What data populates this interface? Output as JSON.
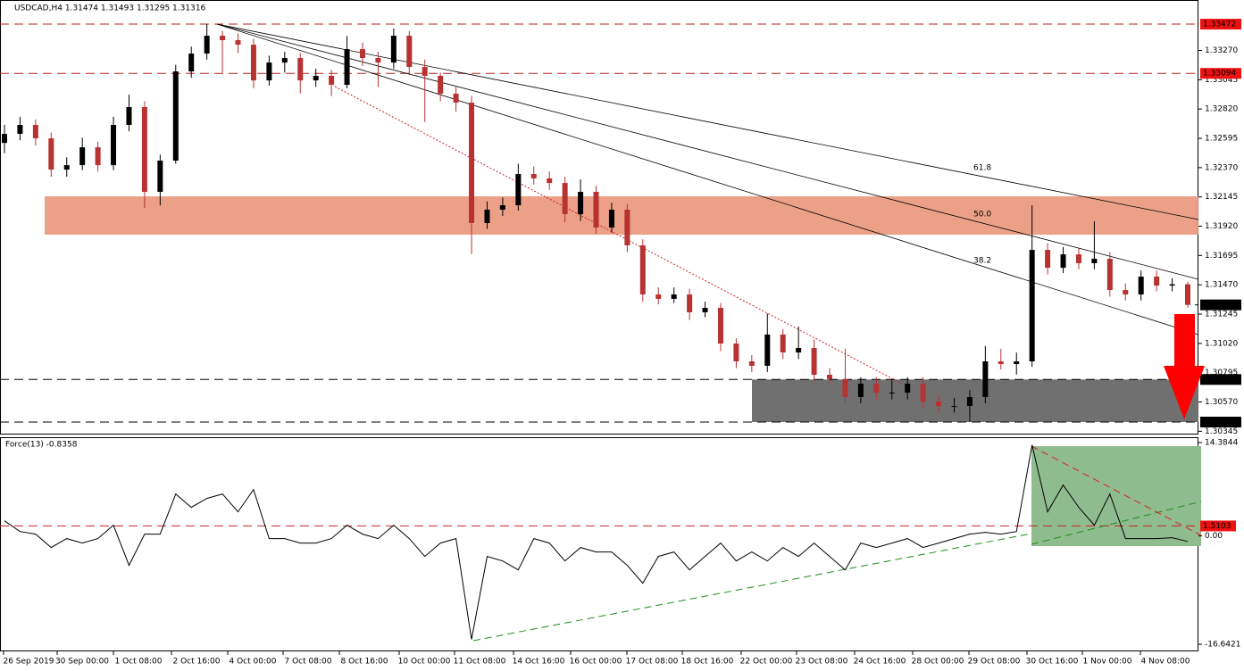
{
  "header": {
    "symbol_info": "USDCAD,H4  1.31474 1.31493 1.31295 1.31316"
  },
  "x_labels": [
    "26 Sep 2019",
    "30 Sep 00:00",
    "1 Oct 08:00",
    "2 Oct 16:00",
    "4 Oct 00:00",
    "7 Oct 08:00",
    "8 Oct 16:00",
    "10 Oct 00:00",
    "11 Oct 08:00",
    "14 Oct 16:00",
    "16 Oct 00:00",
    "17 Oct 08:00",
    "18 Oct 16:00",
    "22 Oct 00:00",
    "23 Oct 08:00",
    "24 Oct 16:00",
    "28 Oct 00:00",
    "29 Oct 08:00",
    "30 Oct 16:00",
    "1 Nov 00:00",
    "4 Nov 08:00"
  ],
  "chart_data": [
    {
      "type": "candlestick",
      "up_color": "#000000",
      "down_color": "#b83232",
      "candles": [
        [
          1.3256,
          1.327,
          1.3248,
          1.32629
        ],
        [
          1.32629,
          1.3276,
          1.3258,
          1.32698
        ],
        [
          1.32698,
          1.3274,
          1.3254,
          1.32595
        ],
        [
          1.32595,
          1.3264,
          1.323,
          1.32355
        ],
        [
          1.32355,
          1.3245,
          1.323,
          1.32389
        ],
        [
          1.32389,
          1.326,
          1.3235,
          1.32526
        ],
        [
          1.32526,
          1.3257,
          1.3234,
          1.32389
        ],
        [
          1.32389,
          1.3276,
          1.3235,
          1.32698
        ],
        [
          1.32698,
          1.3293,
          1.3265,
          1.32835
        ],
        [
          1.32835,
          1.3288,
          1.3206,
          1.32184
        ],
        [
          1.32184,
          1.3247,
          1.3208,
          1.32424
        ],
        [
          1.32424,
          1.3316,
          1.324,
          1.33109
        ],
        [
          1.33109,
          1.333,
          1.3306,
          1.33246
        ],
        [
          1.33246,
          1.33472,
          1.332,
          1.33383
        ],
        [
          1.33383,
          1.3342,
          1.331,
          1.33349
        ],
        [
          1.33349,
          1.334,
          1.3325,
          1.33314
        ],
        [
          1.33314,
          1.3336,
          1.3298,
          1.3304
        ],
        [
          1.3304,
          1.3323,
          1.33,
          1.33177
        ],
        [
          1.33177,
          1.3326,
          1.331,
          1.33212
        ],
        [
          1.33212,
          1.3325,
          1.3294,
          1.3304
        ],
        [
          1.3304,
          1.3313,
          1.3299,
          1.33075
        ],
        [
          1.33075,
          1.3312,
          1.3292,
          1.33006
        ],
        [
          1.33006,
          1.3338,
          1.3298,
          1.3328
        ],
        [
          1.3328,
          1.3333,
          1.3315,
          1.33212
        ],
        [
          1.33212,
          1.3326,
          1.3299,
          1.33177
        ],
        [
          1.33177,
          1.3344,
          1.3313,
          1.33383
        ],
        [
          1.33383,
          1.3342,
          1.3308,
          1.33143
        ],
        [
          1.33143,
          1.332,
          1.3272,
          1.33075
        ],
        [
          1.33075,
          1.331,
          1.3288,
          1.32938
        ],
        [
          1.32938,
          1.3299,
          1.328,
          1.32869
        ],
        [
          1.32869,
          1.3292,
          1.31704,
          1.31944
        ],
        [
          1.31944,
          1.3211,
          1.319,
          1.32047
        ],
        [
          1.32047,
          1.3214,
          1.32,
          1.32081
        ],
        [
          1.32081,
          1.324,
          1.3204,
          1.32321
        ],
        [
          1.32321,
          1.3238,
          1.3224,
          1.32287
        ],
        [
          1.32287,
          1.3234,
          1.322,
          1.32252
        ],
        [
          1.32252,
          1.323,
          1.3195,
          1.32013
        ],
        [
          1.32013,
          1.3228,
          1.3196,
          1.32184
        ],
        [
          1.32184,
          1.3223,
          1.3186,
          1.3191
        ],
        [
          1.3191,
          1.321,
          1.3187,
          1.32047
        ],
        [
          1.32047,
          1.3209,
          1.3172,
          1.31773
        ],
        [
          1.31773,
          1.3182,
          1.3134,
          1.31396
        ],
        [
          1.31396,
          1.3145,
          1.3132,
          1.31362
        ],
        [
          1.31362,
          1.3145,
          1.3133,
          1.31396
        ],
        [
          1.31396,
          1.3144,
          1.312,
          1.31259
        ],
        [
          1.31259,
          1.3134,
          1.3122,
          1.31293
        ],
        [
          1.31293,
          1.3133,
          1.3096,
          1.31019
        ],
        [
          1.31019,
          1.3106,
          1.3083,
          1.30882
        ],
        [
          1.30882,
          1.3093,
          1.308,
          1.30848
        ],
        [
          1.30848,
          1.3125,
          1.308,
          1.31088
        ],
        [
          1.31088,
          1.3113,
          1.309,
          1.30951
        ],
        [
          1.30951,
          1.3115,
          1.309,
          1.30985
        ],
        [
          1.30985,
          1.3105,
          1.3073,
          1.30779
        ],
        [
          1.30779,
          1.3083,
          1.307,
          1.30745
        ],
        [
          1.30745,
          1.3098,
          1.3056,
          1.30608
        ],
        [
          1.30608,
          1.3076,
          1.3056,
          1.30711
        ],
        [
          1.30711,
          1.3076,
          1.3059,
          1.30642
        ],
        [
          1.30642,
          1.3074,
          1.3059,
          1.30642
        ],
        [
          1.30642,
          1.3076,
          1.3059,
          1.30711
        ],
        [
          1.30711,
          1.3076,
          1.3052,
          1.30574
        ],
        [
          1.30574,
          1.3062,
          1.3049,
          1.30539
        ],
        [
          1.30539,
          1.306,
          1.3049,
          1.30539
        ],
        [
          1.30539,
          1.3066,
          1.30416,
          1.30608
        ],
        [
          1.30608,
          1.31,
          1.3056,
          1.30882
        ],
        [
          1.30882,
          1.3098,
          1.3082,
          1.30861
        ],
        [
          1.30861,
          1.3095,
          1.3078,
          1.30882
        ],
        [
          1.30882,
          1.32081,
          1.3084,
          1.31738
        ],
        [
          1.31738,
          1.3179,
          1.3155,
          1.31601
        ],
        [
          1.31601,
          1.3176,
          1.3156,
          1.31704
        ],
        [
          1.31704,
          1.3175,
          1.3159,
          1.31636
        ],
        [
          1.31636,
          1.31958,
          1.3159,
          1.3167
        ],
        [
          1.3167,
          1.3172,
          1.3138,
          1.3143
        ],
        [
          1.3143,
          1.3148,
          1.3135,
          1.31396
        ],
        [
          1.31396,
          1.3158,
          1.3135,
          1.31533
        ],
        [
          1.31533,
          1.3158,
          1.3142,
          1.31464
        ],
        [
          1.31464,
          1.3152,
          1.3142,
          1.31474
        ],
        [
          1.31474,
          1.31493,
          1.31295,
          1.31316
        ]
      ],
      "ylim": [
        1.3032,
        1.33534
      ],
      "yticks": [
        {
          "value": 1.3327,
          "label": "1.33270"
        },
        1.33045,
        {
          "value": 1.3282,
          "label": "1.32820"
        },
        1.32595,
        {
          "value": 1.3237,
          "label": "1.32370"
        },
        1.32145,
        {
          "value": 1.3192,
          "label": "1.31920"
        },
        1.31695,
        {
          "value": 1.3147,
          "label": "1.31470"
        },
        1.31245,
        {
          "value": 1.3102,
          "label": "1.31020"
        },
        1.30795,
        {
          "value": 1.3057,
          "label": "1.30570"
        },
        1.30345
      ],
      "resistance_levels": [
        1.33472,
        1.33094
      ],
      "support_levels": [
        1.30743,
        1.30416
      ],
      "current_price": 1.31316,
      "fib_labels": [
        "61.8",
        "50.0",
        "38.2"
      ]
    },
    {
      "type": "line",
      "title": "Force(13) -0.8358",
      "color": "#000000",
      "values": [
        2.29,
        0.67,
        0.27,
        -1.75,
        -0.4,
        -1.08,
        -0.4,
        1.62,
        -4.45,
        0.27,
        0.27,
        6.34,
        4.32,
        5.67,
        6.34,
        3.64,
        7.01,
        -0.4,
        -0.4,
        -1.08,
        -1.08,
        -0.4,
        1.62,
        0.27,
        -0.4,
        1.62,
        -0.4,
        -3.1,
        -1.08,
        -0.4,
        -15.65,
        -3.1,
        -3.78,
        -5.13,
        -0.4,
        -1.08,
        -3.78,
        -1.75,
        -2.43,
        -2.43,
        -4.45,
        -7.15,
        -3.1,
        -2.43,
        -5.13,
        -3.1,
        -1.08,
        -3.78,
        -2.43,
        -3.78,
        -1.75,
        -3.1,
        -1.08,
        -3.1,
        -5.13,
        -1.08,
        -1.75,
        -1.08,
        -0.4,
        -1.75,
        -1.08,
        -0.4,
        0.27,
        0.54,
        0.27,
        0.67,
        13.76,
        3.64,
        7.69,
        4.32,
        1.62,
        6.34,
        -0.4,
        -0.4,
        -0.4,
        -0.27,
        -0.8358
      ],
      "ylim": [
        -16.6421,
        14.3844
      ],
      "yticks": [
        14.3844,
        {
          "value": 0,
          "label": "0.00"
        },
        -16.6421
      ],
      "level": 1.5103
    }
  ]
}
